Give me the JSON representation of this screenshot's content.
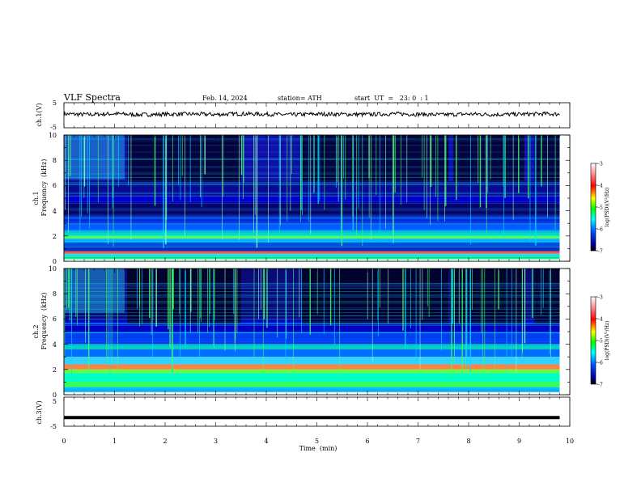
{
  "header": {
    "title": "VLF  Spectra",
    "date": "Feb. 14, 2024",
    "station": "station= ATH",
    "start": "start  UT  =   23: 0  : 1"
  },
  "colorbar": {
    "label": "log(PSD)(V²/Hz)",
    "ticks": [
      "-3",
      "-4",
      "-5",
      "-6",
      "-7"
    ],
    "colors": [
      "#ffffff",
      "#ff0000",
      "#ffff00",
      "#00ff00",
      "#00ffff",
      "#0000ff",
      "#000000"
    ]
  },
  "chart_data": [
    {
      "type": "line",
      "name": "ch.1 waveform",
      "ylabel": "ch.1(V)",
      "ylim": [
        -5,
        5
      ],
      "yticks": [
        "5",
        "-5"
      ],
      "xlim": [
        0,
        10
      ],
      "x": [
        0,
        0.5,
        1,
        1.5,
        2,
        2.5,
        3,
        3.5,
        4,
        4.5,
        5,
        5.5,
        6,
        6.5,
        7,
        7.5,
        8,
        8.5,
        9,
        9.5,
        9.8
      ],
      "y": [
        0.5,
        0.3,
        0.6,
        0.2,
        0.4,
        0.5,
        0.3,
        0.6,
        0.4,
        0.2,
        0.5,
        0.4,
        0.3,
        0.6,
        0.4,
        0.2,
        0.5,
        0.3,
        0.4,
        0.6,
        0.4
      ]
    },
    {
      "type": "heatmap",
      "name": "ch.1 spectrogram",
      "ylabel": "ch.1",
      "ylabel2": "Frequency  (kHz)",
      "ylim": [
        0,
        10
      ],
      "yticks": [
        "0",
        "2",
        "4",
        "6",
        "8",
        "10"
      ],
      "xlim": [
        0,
        9.8
      ],
      "colorbar_range": [
        -7,
        -3
      ]
    },
    {
      "type": "heatmap",
      "name": "ch.2 spectrogram",
      "ylabel": "ch.2",
      "ylabel2": "Frequency  (kHz)",
      "ylim": [
        0,
        10
      ],
      "yticks": [
        "0",
        "2",
        "4",
        "6",
        "8",
        "10"
      ],
      "xlim": [
        0,
        9.8
      ],
      "colorbar_range": [
        -7,
        -3
      ]
    },
    {
      "type": "line",
      "name": "ch.3 waveform",
      "ylabel": "ch.3(V)",
      "ylim": [
        -5,
        5
      ],
      "yticks": [
        "5",
        "-5"
      ],
      "xlabel": "Time  (min)",
      "xlim": [
        0,
        10
      ],
      "xticks": [
        "0",
        "1",
        "2",
        "3",
        "4",
        "5",
        "6",
        "7",
        "8",
        "9",
        "10"
      ],
      "x": [
        0,
        9.8
      ],
      "y": [
        -2,
        -2
      ]
    }
  ]
}
